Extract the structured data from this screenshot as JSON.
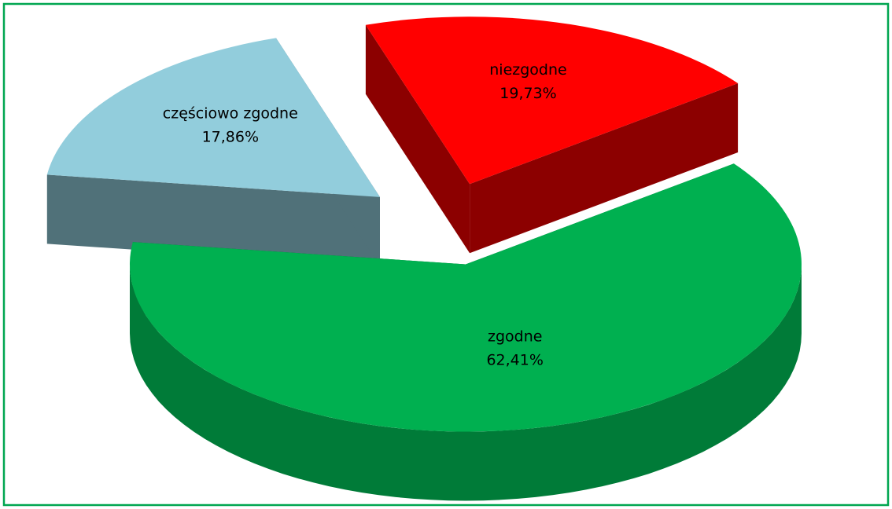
{
  "chart_data": {
    "type": "pie",
    "categories": [
      "zgodne",
      "częściowo zgodne",
      "niezgodne"
    ],
    "values": [
      62.41,
      17.86,
      19.73
    ],
    "value_labels": [
      "62,41%",
      "17,86%",
      "19,73%"
    ],
    "colors": [
      "#00b050",
      "#92cddc",
      "#ff0000"
    ]
  }
}
